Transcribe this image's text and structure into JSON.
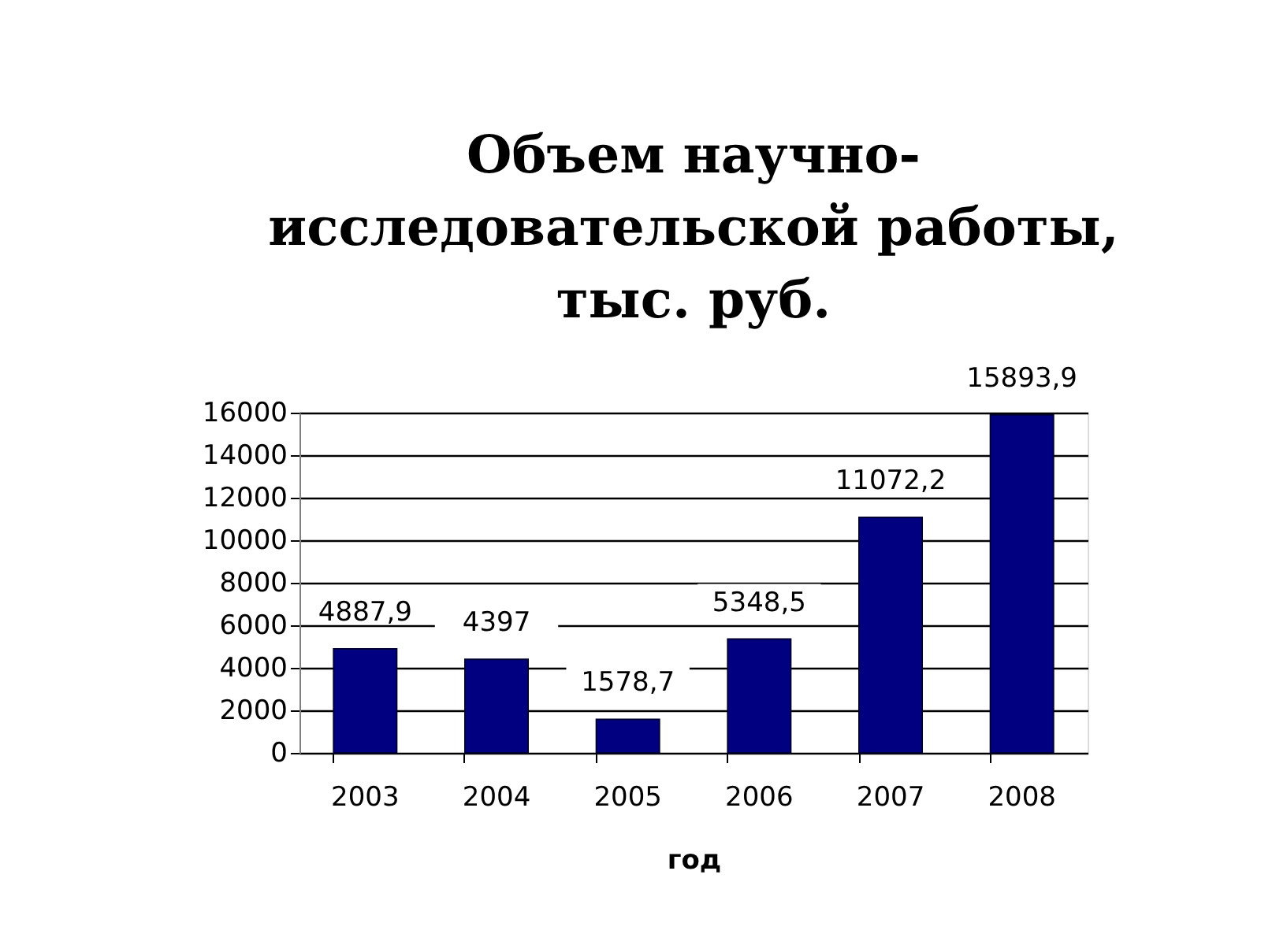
{
  "chart_data": {
    "type": "bar",
    "title": "Объем научно-\nисследовательской работы,\nтыс. руб.",
    "xlabel": "год",
    "categories": [
      "2003",
      "2004",
      "2005",
      "2006",
      "2007",
      "2008"
    ],
    "values": [
      4887.9,
      4397,
      1578.7,
      5348.5,
      11072.2,
      15893.9
    ],
    "color": "#000080",
    "value_labels": [
      "4887,9",
      "4397",
      "1578,7",
      "5348,5",
      "11072,2",
      "15893,9"
    ],
    "ylim": [
      0,
      16000
    ],
    "yticks": [
      0,
      2000,
      4000,
      6000,
      8000,
      10000,
      12000,
      14000,
      16000
    ],
    "grid": "y"
  }
}
